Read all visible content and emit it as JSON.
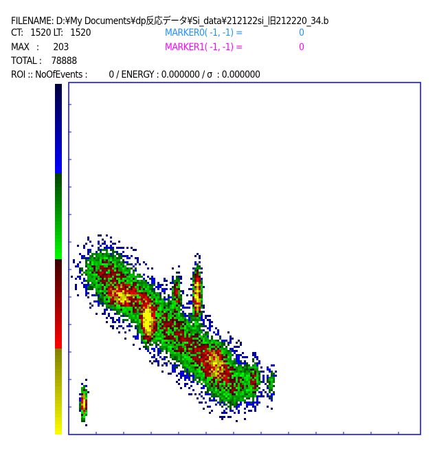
{
  "header": {
    "filename_label": "FILENAME:",
    "filename": "D:¥My Documents¥dp反応データ¥Si_data¥212122si_旧212220_34.b",
    "ct_label": "CT:",
    "ct": "1520",
    "lt_label": "LT:",
    "lt": "1520",
    "max_label": "MAX   :",
    "max": "203",
    "total_label": "TOTAL :",
    "total": "78888",
    "roi_text": "ROI :: NoOfEvents :",
    "roi_events": "0",
    "roi_energy": "/ ENERGY : 0.000000 / σ  : 0.000000"
  },
  "markers": [
    {
      "label": "MARKER0( -1, -1) =",
      "value": "0",
      "color": "#1e90ff"
    },
    {
      "label": "MARKER1( -1, -1) =",
      "value": "0",
      "color": "#ff00ff"
    }
  ],
  "colors": {
    "frame": "#0000ff"
  },
  "chart_data": {
    "type": "heatmap",
    "title": "",
    "xlabel": "",
    "ylabel": "",
    "max_count": 203,
    "total_counts": 78888,
    "colorscale": [
      {
        "from": "#000040",
        "to": "#0000ff"
      },
      {
        "from": "#004000",
        "to": "#00ff00"
      },
      {
        "from": "#400000",
        "to": "#ff0000"
      },
      {
        "from": "#808000",
        "to": "#ffff00"
      }
    ],
    "grid": false,
    "clusters": [
      {
        "x": 22,
        "y": 45,
        "sx": 3,
        "sy": 14,
        "peak": 1.0
      },
      {
        "x": 115,
        "y": 165,
        "sx": 5,
        "sy": 18,
        "peak": 0.85
      },
      {
        "x": 187,
        "y": 205,
        "sx": 4,
        "sy": 22,
        "peak": 1.0
      },
      {
        "x": 157,
        "y": 205,
        "sx": 4,
        "sy": 18,
        "peak": 0.45
      },
      {
        "x": 75,
        "y": 200,
        "sx": 14,
        "sy": 10,
        "peak": 0.5
      },
      {
        "x": 215,
        "y": 105,
        "sx": 10,
        "sy": 16,
        "peak": 0.45
      },
      {
        "x": 270,
        "y": 80,
        "sx": 6,
        "sy": 18,
        "peak": 0.3
      },
      {
        "x": 295,
        "y": 75,
        "sx": 4,
        "sy": 18,
        "peak": 0.25
      }
    ],
    "band": {
      "x0": 60,
      "y0": 230,
      "x1": 230,
      "y1": 80,
      "width": 22,
      "peak": 0.42
    },
    "xrange": [
      0,
      512
    ],
    "yrange": [
      0,
      512
    ]
  }
}
